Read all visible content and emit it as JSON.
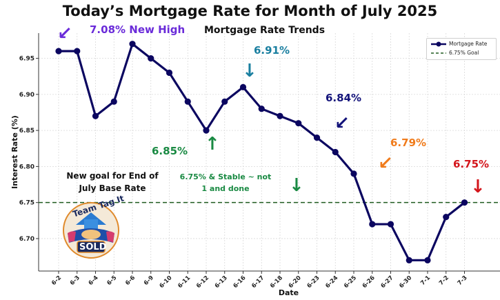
{
  "title": "Today’s Mortgage Rate for Month of July 2025",
  "subtitle": "Mortgage Rate Trends",
  "colors": {
    "line": "#0b0660",
    "goal": "#1e5a1e",
    "purple": "#6a2bd9",
    "teal": "#1a7fa0",
    "navy": "#13137a",
    "green": "#1a8a43",
    "orange": "#f07b1b",
    "red": "#d4161c"
  },
  "annotations": {
    "new_high": "7.08% New High",
    "a691": "6.91%",
    "a684": "6.84%",
    "a679": "6.79%",
    "a675": "6.75%",
    "a685": "6.85%",
    "goal_note_l1": "New goal for End of",
    "goal_note_l2": "July Base Rate",
    "stable_l1": "6.75% & Stable ~ not",
    "stable_l2": "1 and done"
  },
  "badge": {
    "text_top": "Team Tag It",
    "text_bottom": "SOLD"
  },
  "chart_data": {
    "type": "line",
    "title": "Mortgage Rate Trends",
    "xlabel": "Date",
    "ylabel": "Interest Rate (%)",
    "categories": [
      "6-2",
      "6-3",
      "6-4",
      "6-5",
      "6-6",
      "6-9",
      "6-10",
      "6-11",
      "6-12",
      "6-13",
      "6-16",
      "6-17",
      "6-18",
      "6-20",
      "6-23",
      "6-24",
      "6-25",
      "6-26",
      "6-27",
      "6-30",
      "7-1",
      "7-2",
      "7-3"
    ],
    "series": [
      {
        "name": "Mortgage Rate",
        "values": [
          6.96,
          6.96,
          6.87,
          6.89,
          6.97,
          6.95,
          6.93,
          6.89,
          6.85,
          6.89,
          6.91,
          6.88,
          6.87,
          6.86,
          6.84,
          6.82,
          6.79,
          6.72,
          6.72,
          6.67,
          6.67,
          6.73,
          6.75
        ]
      }
    ],
    "goal": {
      "name": "6.75% Goal",
      "value": 6.75
    },
    "yticks": [
      6.7,
      6.75,
      6.8,
      6.85,
      6.9,
      6.95
    ],
    "ytick_labels": [
      "6.70",
      "6.75",
      "6.80",
      "6.85",
      "6.90",
      "6.95"
    ],
    "ylim": [
      6.655,
      6.985
    ],
    "grid": true,
    "legend_position": "top-right"
  }
}
